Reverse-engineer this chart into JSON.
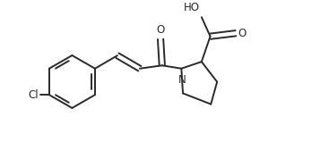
{
  "bg_color": "#ffffff",
  "line_color": "#2a2a2a",
  "line_width": 1.4,
  "font_size": 8.5,
  "fig_width": 3.48,
  "fig_height": 1.59,
  "xlim": [
    -0.5,
    9.5
  ],
  "ylim": [
    -2.2,
    2.2
  ]
}
